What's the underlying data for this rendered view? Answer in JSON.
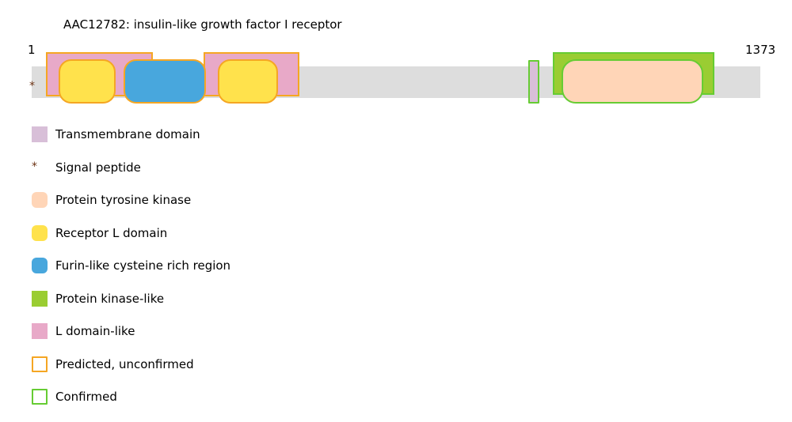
{
  "title": "AAC12782: insulin-like growth factor I receptor",
  "sequence": {
    "start": 1,
    "end": 1373,
    "track_color": "#dddddd"
  },
  "legend": {
    "features": [
      {
        "label": "Transmembrane domain",
        "color": "#d8bfd8",
        "segments": [
          {
            "start": 935,
            "end": 957,
            "confirmed": true
          }
        ]
      },
      {
        "label": "Signal peptide",
        "symbol": "*",
        "color": "#6b3213"
      },
      {
        "label": "Protein tyrosine kinase",
        "color": "#ffd5b7",
        "segments": [
          {
            "start": 998,
            "end": 1266,
            "confirmed": true
          }
        ]
      },
      {
        "label": "Receptor L domain",
        "color": "#ffe24c",
        "segments": [
          {
            "start": 51,
            "end": 158,
            "confirmed": false
          },
          {
            "start": 351,
            "end": 464,
            "confirmed": false
          }
        ]
      },
      {
        "label": "Furin-like cysteine rich region",
        "color": "#48a7dd",
        "segments": [
          {
            "start": 173,
            "end": 328,
            "confirmed": false
          }
        ]
      },
      {
        "label": "Protein kinase-like",
        "color": "#9acd32",
        "segments": [
          {
            "start": 982,
            "end": 1286,
            "confirmed": true
          }
        ]
      },
      {
        "label": "L domain-like",
        "color": "#e8a9c8",
        "segments": [
          {
            "start": 27,
            "end": 228,
            "confirmed": false
          },
          {
            "start": 324,
            "end": 504,
            "confirmed": false
          }
        ]
      }
    ],
    "status": [
      {
        "label": "Predicted, unconfirmed",
        "color": "#f5a623"
      },
      {
        "label": "Confirmed",
        "color": "#66cc33"
      }
    ]
  }
}
